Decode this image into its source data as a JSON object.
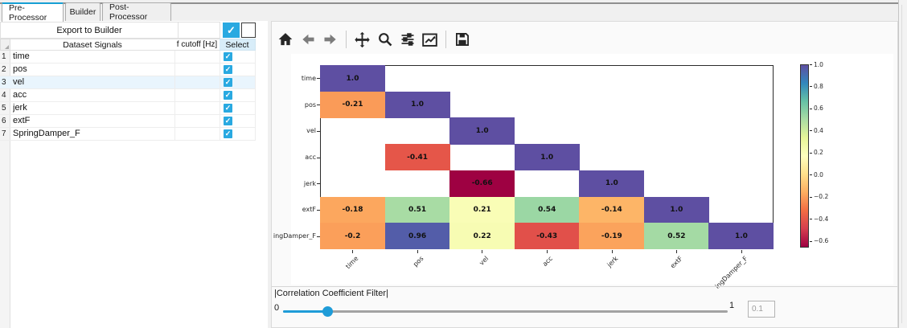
{
  "tabs": [
    {
      "label": "Pre-Processor",
      "active": true
    },
    {
      "label": "Builder",
      "active": false
    },
    {
      "label": "Post-Processor",
      "active": false
    }
  ],
  "left_panel": {
    "export_button_label": "Export to Builder",
    "export_checkbox_checked": true,
    "columns": {
      "signals": "Dataset Signals",
      "f_cutoff": "f cutoff [Hz]",
      "select": "Select"
    },
    "rows": [
      {
        "index": "1",
        "signal": "time",
        "f_cutoff": "",
        "selected": true,
        "highlighted": false
      },
      {
        "index": "2",
        "signal": "pos",
        "f_cutoff": "",
        "selected": true,
        "highlighted": false
      },
      {
        "index": "3",
        "signal": "vel",
        "f_cutoff": "",
        "selected": true,
        "highlighted": true
      },
      {
        "index": "4",
        "signal": "acc",
        "f_cutoff": "",
        "selected": true,
        "highlighted": false
      },
      {
        "index": "5",
        "signal": "jerk",
        "f_cutoff": "",
        "selected": true,
        "highlighted": false
      },
      {
        "index": "6",
        "signal": "extF",
        "f_cutoff": "",
        "selected": true,
        "highlighted": false
      },
      {
        "index": "7",
        "signal": "SpringDamper_F",
        "f_cutoff": "",
        "selected": true,
        "highlighted": false
      }
    ]
  },
  "toolbar": {
    "icons": [
      "home",
      "back",
      "forward",
      "pan",
      "zoom",
      "subplots",
      "customize",
      "save"
    ]
  },
  "chart_data": {
    "type": "heatmap",
    "title": "",
    "x_labels": [
      "time",
      "pos",
      "vel",
      "acc",
      "jerk",
      "extF",
      "ingDamper_F"
    ],
    "y_labels": [
      "time",
      "pos",
      "vel",
      "acc",
      "jerk",
      "extF",
      "ingDamper_F"
    ],
    "matrix": [
      [
        1.0,
        null,
        null,
        null,
        null,
        null,
        null
      ],
      [
        -0.21,
        1.0,
        null,
        null,
        null,
        null,
        null
      ],
      [
        null,
        null,
        1.0,
        null,
        null,
        null,
        null
      ],
      [
        null,
        -0.41,
        null,
        1.0,
        null,
        null,
        null
      ],
      [
        null,
        null,
        -0.66,
        null,
        1.0,
        null,
        null
      ],
      [
        -0.18,
        0.51,
        0.21,
        0.54,
        -0.14,
        1.0,
        null
      ],
      [
        -0.2,
        0.96,
        0.22,
        -0.43,
        -0.19,
        0.52,
        1.0
      ]
    ],
    "colormap": "Spectral",
    "vmin": -0.66,
    "vmax": 1.0,
    "colorbar_ticks": [
      1.0,
      0.8,
      0.6,
      0.4,
      0.2,
      0.0,
      -0.2,
      -0.4,
      -0.6
    ],
    "legend_position": "right",
    "grid": false
  },
  "filter": {
    "label": "|Correlation Coefficient Filter|",
    "min_label": "0",
    "max_label": "1",
    "value": "0.1",
    "fraction": 0.1
  },
  "colors": {
    "checkbox_accent": "#29a9e1",
    "tab_accent": "#179fd4",
    "slider_blue": "#1f9cd8",
    "select_header_bg": "#d8edf9",
    "row_highlight": "#e9f5fd"
  }
}
